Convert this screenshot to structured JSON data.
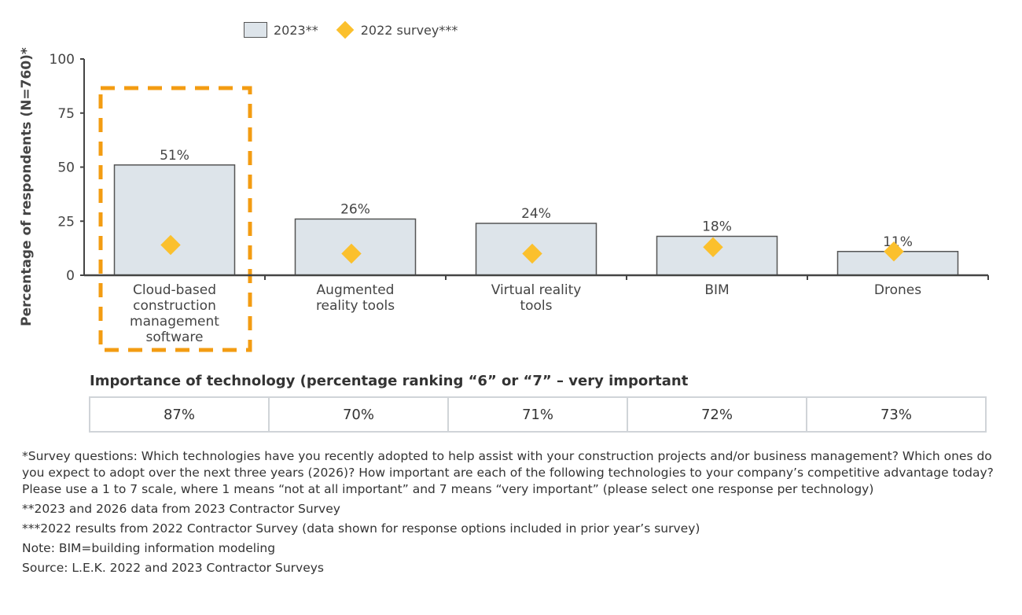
{
  "chart_data": {
    "type": "bar",
    "categories": [
      "Cloud-based construction management software",
      "Augmented reality tools",
      "Virtual reality tools",
      "BIM",
      "Drones"
    ],
    "category_lines": [
      [
        "Cloud-based",
        "construction",
        "management",
        "software"
      ],
      [
        "Augmented",
        "reality tools"
      ],
      [
        "Virtual reality",
        "tools"
      ],
      [
        "BIM"
      ],
      [
        "Drones"
      ]
    ],
    "series": [
      {
        "name": "2023**",
        "type": "bar",
        "values": [
          51,
          26,
          24,
          18,
          11
        ],
        "labels": [
          "51%",
          "26%",
          "24%",
          "18%",
          "11%"
        ],
        "color": "#dde4ea"
      },
      {
        "name": "2022 survey***",
        "type": "scatter",
        "marker": "diamond",
        "values": [
          14,
          10,
          10,
          13,
          11
        ],
        "color": "#fbc02d"
      }
    ],
    "ylabel": "Percentage of respondents (N=760)*",
    "ylim": [
      0,
      100
    ],
    "yticks": [
      0,
      25,
      50,
      75,
      100
    ],
    "legend": "top",
    "highlight": {
      "category": "Cloud-based construction management software",
      "style": "dashed box",
      "color": "#f39c12"
    }
  },
  "importance": {
    "title": "Importance of technology (percentage ranking “6” or “7” – very important",
    "values": [
      "87%",
      "70%",
      "71%",
      "72%",
      "73%"
    ]
  },
  "notes": [
    "*Survey questions: Which technologies have you recently adopted to help assist with your construction projects and/or business management? Which ones do you expect to adopt over the next three years (2026)? How important are each of the following technologies to your company’s competitive advantage today? Please use a 1 to 7 scale, where 1 means “not at all important” and 7 means “very important” (please select one response per technology)",
    "**2023 and 2026 data from 2023 Contractor Survey",
    "***2022 results from 2022 Contractor Survey (data shown for response options included in prior year’s survey)",
    "Note: BIM=building information modeling",
    "Source: L.E.K. 2022 and 2023 Contractor Surveys"
  ]
}
